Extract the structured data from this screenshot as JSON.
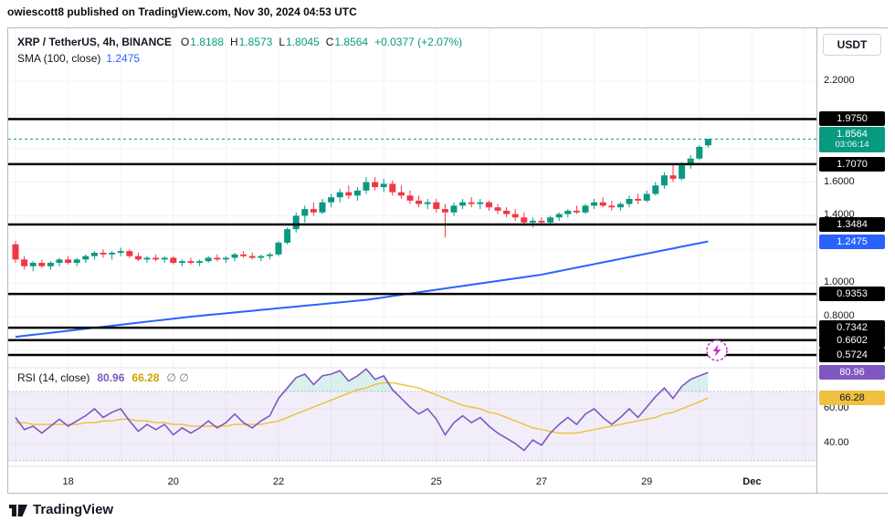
{
  "header": {
    "attribution": "owiescott8 published on TradingView.com, Nov 30, 2024 04:53 UTC"
  },
  "legend": {
    "symbol": "XRP / TetherUS, 4h, BINANCE",
    "ohlc": {
      "o_label": "O",
      "o": "1.8188",
      "h_label": "H",
      "h": "1.8573",
      "l_label": "L",
      "l": "1.8045",
      "c_label": "C",
      "c": "1.8564",
      "change": "+0.0377 (+2.07%)"
    },
    "sma_label": "SMA (100, close)",
    "sma_value": "1.2475"
  },
  "rsi_legend": {
    "title": "RSI (14, close)",
    "value": "80.96",
    "ma_value": "66.28",
    "extra": "∅ ∅"
  },
  "axis": {
    "currency": "USDT"
  },
  "footer": {
    "brand": "TradingView"
  },
  "icons": {
    "event": "lightning-icon",
    "brand_mark": "tradingview-logo"
  },
  "chart_data": {
    "type": "candlestick",
    "symbol": "XRP/USDT",
    "interval": "4h",
    "exchange": "BINANCE",
    "title": "XRP / TetherUS, 4h, BINANCE",
    "price_axis": {
      "ylim_main": [
        0.5,
        2.52
      ],
      "ticks": [
        {
          "value": 2.2,
          "label": "2.2000"
        },
        {
          "value": 1.6,
          "label": "1.6000"
        },
        {
          "value": 1.4,
          "label": "1.4000"
        },
        {
          "value": 1.0,
          "label": "1.0000"
        },
        {
          "value": 0.8,
          "label": "0.8000"
        }
      ]
    },
    "levels": [
      {
        "value": 1.975,
        "label": "1.9750"
      },
      {
        "value": 1.707,
        "label": "1.7070"
      },
      {
        "value": 1.3484,
        "label": "1.3484"
      },
      {
        "value": 0.9353,
        "label": "0.9353"
      },
      {
        "value": 0.7342,
        "label": "0.7342"
      },
      {
        "value": 0.6602,
        "label": "0.6602"
      },
      {
        "value": 0.5724,
        "label": "0.5724"
      }
    ],
    "last_price": {
      "value": 1.8564,
      "label": "1.8564",
      "countdown": "03:06:14"
    },
    "sma": {
      "name": "SMA 100",
      "value": 1.2475,
      "label": "1.2475",
      "points": [
        [
          0,
          0.68
        ],
        [
          20,
          0.8
        ],
        [
          40,
          0.9
        ],
        [
          60,
          1.05
        ],
        [
          79,
          1.2475
        ]
      ]
    },
    "candles": [
      [
        1.23,
        1.25,
        1.12,
        1.14
      ],
      [
        1.14,
        1.16,
        1.08,
        1.1
      ],
      [
        1.1,
        1.13,
        1.07,
        1.12
      ],
      [
        1.12,
        1.14,
        1.09,
        1.1
      ],
      [
        1.1,
        1.13,
        1.08,
        1.12
      ],
      [
        1.12,
        1.15,
        1.1,
        1.14
      ],
      [
        1.14,
        1.16,
        1.11,
        1.12
      ],
      [
        1.12,
        1.15,
        1.1,
        1.14
      ],
      [
        1.14,
        1.17,
        1.12,
        1.16
      ],
      [
        1.16,
        1.19,
        1.14,
        1.18
      ],
      [
        1.18,
        1.2,
        1.15,
        1.17
      ],
      [
        1.17,
        1.19,
        1.14,
        1.18
      ],
      [
        1.18,
        1.21,
        1.16,
        1.19
      ],
      [
        1.19,
        1.2,
        1.15,
        1.16
      ],
      [
        1.16,
        1.18,
        1.13,
        1.14
      ],
      [
        1.14,
        1.16,
        1.12,
        1.15
      ],
      [
        1.15,
        1.17,
        1.13,
        1.14
      ],
      [
        1.14,
        1.16,
        1.12,
        1.15
      ],
      [
        1.15,
        1.16,
        1.11,
        1.12
      ],
      [
        1.12,
        1.14,
        1.1,
        1.13
      ],
      [
        1.13,
        1.15,
        1.11,
        1.12
      ],
      [
        1.12,
        1.14,
        1.1,
        1.13
      ],
      [
        1.13,
        1.16,
        1.12,
        1.15
      ],
      [
        1.15,
        1.17,
        1.13,
        1.14
      ],
      [
        1.14,
        1.16,
        1.12,
        1.15
      ],
      [
        1.15,
        1.18,
        1.13,
        1.17
      ],
      [
        1.17,
        1.19,
        1.15,
        1.16
      ],
      [
        1.16,
        1.18,
        1.14,
        1.15
      ],
      [
        1.15,
        1.17,
        1.13,
        1.16
      ],
      [
        1.16,
        1.18,
        1.14,
        1.17
      ],
      [
        1.17,
        1.25,
        1.16,
        1.24
      ],
      [
        1.24,
        1.33,
        1.23,
        1.32
      ],
      [
        1.32,
        1.42,
        1.3,
        1.4
      ],
      [
        1.4,
        1.46,
        1.36,
        1.44
      ],
      [
        1.44,
        1.48,
        1.4,
        1.42
      ],
      [
        1.42,
        1.5,
        1.41,
        1.48
      ],
      [
        1.48,
        1.53,
        1.45,
        1.51
      ],
      [
        1.51,
        1.56,
        1.48,
        1.54
      ],
      [
        1.54,
        1.58,
        1.5,
        1.52
      ],
      [
        1.52,
        1.57,
        1.49,
        1.55
      ],
      [
        1.55,
        1.63,
        1.53,
        1.6
      ],
      [
        1.6,
        1.63,
        1.55,
        1.57
      ],
      [
        1.57,
        1.62,
        1.54,
        1.59
      ],
      [
        1.59,
        1.61,
        1.52,
        1.54
      ],
      [
        1.54,
        1.58,
        1.5,
        1.52
      ],
      [
        1.52,
        1.55,
        1.47,
        1.49
      ],
      [
        1.49,
        1.52,
        1.45,
        1.47
      ],
      [
        1.47,
        1.5,
        1.44,
        1.48
      ],
      [
        1.48,
        1.5,
        1.42,
        1.44
      ],
      [
        1.44,
        1.47,
        1.27,
        1.42
      ],
      [
        1.42,
        1.48,
        1.4,
        1.46
      ],
      [
        1.46,
        1.5,
        1.44,
        1.48
      ],
      [
        1.48,
        1.51,
        1.45,
        1.47
      ],
      [
        1.47,
        1.5,
        1.44,
        1.48
      ],
      [
        1.48,
        1.49,
        1.43,
        1.45
      ],
      [
        1.45,
        1.47,
        1.41,
        1.43
      ],
      [
        1.43,
        1.45,
        1.39,
        1.41
      ],
      [
        1.41,
        1.44,
        1.37,
        1.39
      ],
      [
        1.39,
        1.42,
        1.34,
        1.36
      ],
      [
        1.36,
        1.39,
        1.33,
        1.37
      ],
      [
        1.37,
        1.39,
        1.34,
        1.36
      ],
      [
        1.36,
        1.4,
        1.34,
        1.39
      ],
      [
        1.39,
        1.42,
        1.37,
        1.41
      ],
      [
        1.41,
        1.44,
        1.39,
        1.43
      ],
      [
        1.43,
        1.46,
        1.41,
        1.42
      ],
      [
        1.42,
        1.47,
        1.41,
        1.46
      ],
      [
        1.46,
        1.5,
        1.44,
        1.48
      ],
      [
        1.48,
        1.51,
        1.45,
        1.46
      ],
      [
        1.46,
        1.49,
        1.43,
        1.45
      ],
      [
        1.45,
        1.48,
        1.43,
        1.47
      ],
      [
        1.47,
        1.52,
        1.45,
        1.5
      ],
      [
        1.5,
        1.53,
        1.47,
        1.49
      ],
      [
        1.49,
        1.55,
        1.48,
        1.53
      ],
      [
        1.53,
        1.6,
        1.52,
        1.58
      ],
      [
        1.58,
        1.66,
        1.56,
        1.64
      ],
      [
        1.64,
        1.7,
        1.6,
        1.62
      ],
      [
        1.62,
        1.72,
        1.61,
        1.7
      ],
      [
        1.7,
        1.76,
        1.68,
        1.74
      ],
      [
        1.74,
        1.82,
        1.73,
        1.81
      ],
      [
        1.8188,
        1.8573,
        1.8045,
        1.8564
      ]
    ],
    "rsi": {
      "name": "RSI 14",
      "value": 80.96,
      "label": "80.96",
      "ma_value": 66.28,
      "ma_label": "66.28",
      "upper": 70,
      "lower": 30,
      "ylim": [
        20,
        95
      ],
      "ticks": [
        {
          "value": 60,
          "label": "60.00"
        },
        {
          "value": 40,
          "label": "40.00"
        }
      ],
      "values": [
        55,
        48,
        50,
        46,
        50,
        54,
        50,
        53,
        56,
        60,
        55,
        58,
        60,
        53,
        47,
        51,
        48,
        51,
        45,
        49,
        46,
        49,
        53,
        49,
        52,
        57,
        52,
        49,
        53,
        56,
        66,
        72,
        78,
        80,
        74,
        79,
        80,
        82,
        76,
        79,
        83,
        77,
        79,
        71,
        66,
        61,
        57,
        60,
        54,
        45,
        52,
        56,
        52,
        55,
        50,
        46,
        43,
        40,
        36,
        42,
        39,
        46,
        51,
        55,
        51,
        57,
        60,
        55,
        51,
        55,
        60,
        55,
        61,
        67,
        72,
        66,
        73,
        77,
        79,
        80.96
      ],
      "ma_values": [
        52,
        52,
        51,
        51,
        51,
        51,
        51,
        51,
        52,
        52,
        53,
        53,
        54,
        54,
        53,
        53,
        52,
        52,
        51,
        51,
        50,
        50,
        50,
        50,
        50,
        51,
        51,
        51,
        51,
        52,
        53,
        55,
        57,
        59,
        61,
        63,
        65,
        67,
        69,
        71,
        72,
        74,
        75,
        75,
        74,
        73,
        72,
        70,
        68,
        66,
        64,
        62,
        61,
        60,
        58,
        57,
        55,
        53,
        51,
        49,
        48,
        47,
        46,
        46,
        46,
        47,
        48,
        49,
        50,
        51,
        52,
        53,
        54,
        55,
        57,
        58,
        60,
        62,
        64,
        66.28
      ]
    },
    "time_axis": [
      {
        "label": "18",
        "candle": 6
      },
      {
        "label": "20",
        "candle": 18
      },
      {
        "label": "22",
        "candle": 30
      },
      {
        "label": "25",
        "candle": 48
      },
      {
        "label": "27",
        "candle": 60
      },
      {
        "label": "29",
        "candle": 72
      },
      {
        "label": "Dec",
        "candle": 84,
        "bold": true
      }
    ],
    "colors": {
      "up": "#089981",
      "down": "#f23645",
      "sma": "#2962ff",
      "rsi": "#7e57c2",
      "rsi_ma": "#edc240",
      "level": "#000000",
      "band": "rgba(126,87,194,0.10)",
      "overbought_fill": "rgba(8,153,129,0.15)",
      "last_label_bg": "#089981",
      "sma_label_bg": "#2962ff",
      "rsi_label_bg": "#7e57c2",
      "rsi_ma_label_bg": "#f2c040",
      "event_icon": "#c936c9",
      "grid": "#f2f3f7"
    }
  }
}
